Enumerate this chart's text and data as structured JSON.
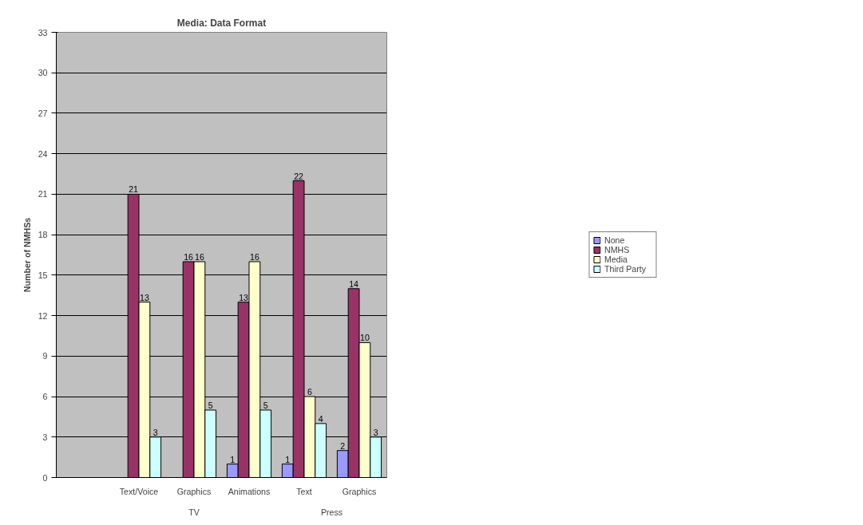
{
  "chart_data": {
    "type": "bar",
    "title": "Media: Data Format",
    "ylabel": "Number of NMHSs",
    "categories": [
      null,
      "Text/Voice",
      "Graphics",
      "Animations",
      "Text",
      "Graphics"
    ],
    "series": [
      {
        "name": "None",
        "color": "#9999ff",
        "values": [
          null,
          null,
          null,
          1,
          1,
          2
        ]
      },
      {
        "name": "NMHS",
        "color": "#993366",
        "values": [
          null,
          21,
          16,
          13,
          22,
          14
        ]
      },
      {
        "name": "Media",
        "color": "#ffffcc",
        "values": [
          null,
          13,
          16,
          16,
          6,
          10
        ]
      },
      {
        "name": "Third Party",
        "color": "#ccffff",
        "values": [
          null,
          3,
          5,
          5,
          4,
          3
        ]
      }
    ],
    "annotations": [
      "TV",
      "Press"
    ],
    "ylim": [
      0,
      33
    ],
    "yticks": [
      0,
      3,
      6,
      9,
      12,
      15,
      18,
      21,
      24,
      27,
      30,
      33
    ],
    "grid": "y",
    "legend": "right",
    "data_labels": true
  }
}
